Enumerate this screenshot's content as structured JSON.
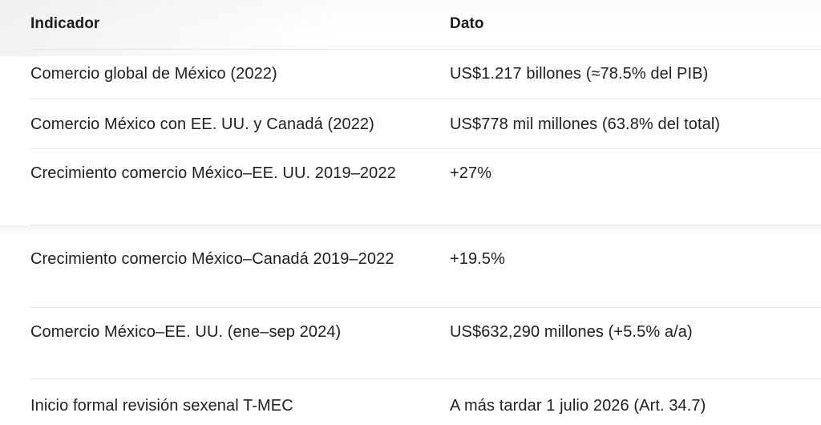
{
  "table": {
    "headers": [
      "Indicador",
      "Dato"
    ],
    "rows": [
      {
        "indicador": "Comercio global de México (2022)",
        "dato": "US$1.217 billones (≈78.5% del PIB)"
      },
      {
        "indicador": "Comercio México con EE. UU. y Canadá (2022)",
        "dato": "US$778 mil millones (63.8% del total)"
      },
      {
        "indicador": "Crecimiento comercio México–EE. UU. 2019–2022",
        "dato": "+27%"
      },
      {
        "indicador": "Crecimiento comercio México–Canadá 2019–2022",
        "dato": "+19.5%"
      },
      {
        "indicador": "Comercio México–EE. UU. (ene–sep 2024)",
        "dato": "US$632,290 millones (+5.5% a/a)"
      },
      {
        "indicador": "Inicio formal revisión sexenal T-MEC",
        "dato": "A más tardar 1 julio 2026 (Art. 34.7)"
      }
    ]
  }
}
